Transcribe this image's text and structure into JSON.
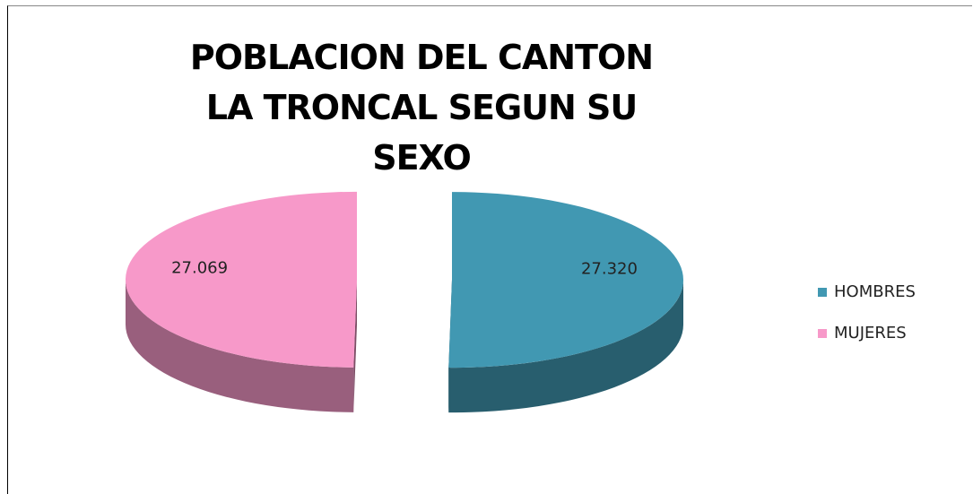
{
  "chart_data": {
    "type": "pie3d",
    "title": "POBLACION DEL CANTON LA TRONCAL SEGUN SU SEXO",
    "series": [
      {
        "name": "HOMBRES",
        "color": "#4198b2",
        "values": [
          27320
        ],
        "value_labels": [
          "27.320"
        ]
      },
      {
        "name": "MUJERES",
        "color": "#f799c9",
        "values": [
          27069
        ],
        "value_labels": [
          "27.069"
        ]
      }
    ],
    "legend": "right"
  }
}
